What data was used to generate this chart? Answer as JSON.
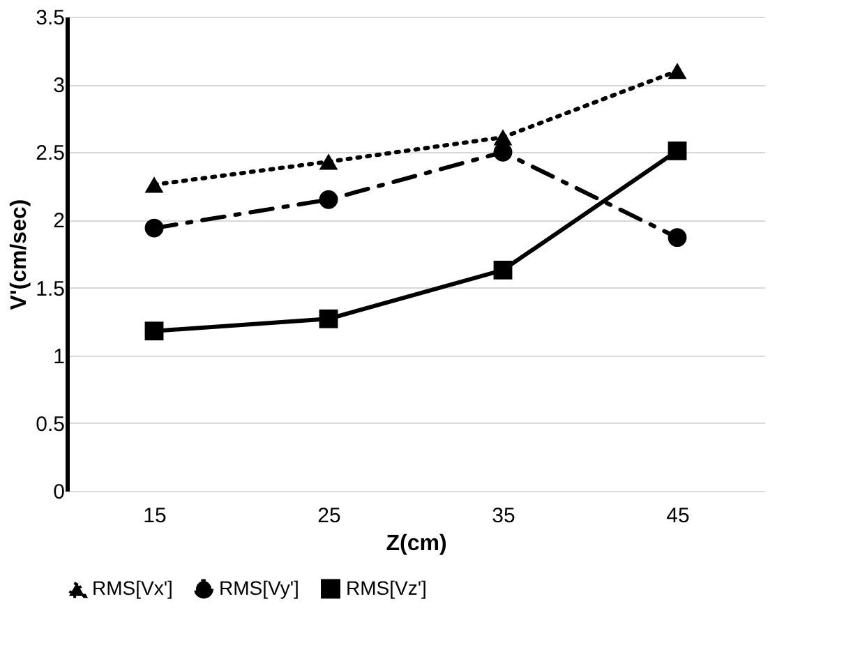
{
  "chart_data": {
    "type": "line",
    "xlabel": "Z(cm)",
    "ylabel": "V'(cm/sec)",
    "categories": [
      "15",
      "25",
      "35",
      "45"
    ],
    "series": [
      {
        "name": "RMS[Vx']",
        "color": "#000000",
        "values": [
          2.26,
          2.43,
          2.61,
          3.1
        ],
        "marker": "triangle",
        "line_style": "dotted"
      },
      {
        "name": "RMS[Vy']",
        "color": "#000000",
        "values": [
          1.94,
          2.15,
          2.5,
          1.87
        ],
        "marker": "circle",
        "line_style": "dashed"
      },
      {
        "name": "RMS[Vz']",
        "color": "#000000",
        "values": [
          1.18,
          1.27,
          1.63,
          2.51
        ],
        "marker": "square",
        "line_style": "solid"
      }
    ],
    "ylim": [
      0,
      3.5
    ],
    "yticks": [
      0,
      0.5,
      1,
      1.5,
      2,
      2.5,
      3,
      3.5
    ],
    "grid": "y",
    "legend": "bottom"
  }
}
